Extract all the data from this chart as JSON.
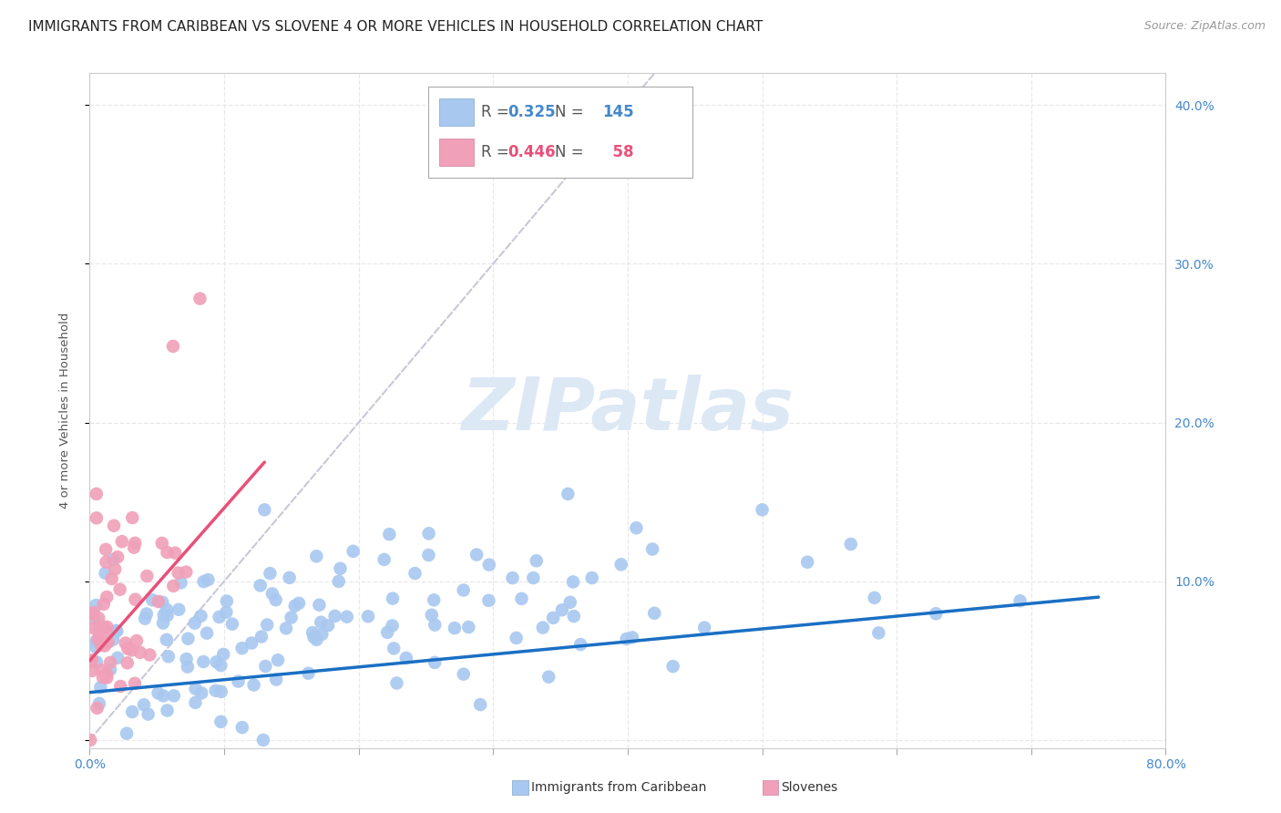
{
  "title": "IMMIGRANTS FROM CARIBBEAN VS SLOVENE 4 OR MORE VEHICLES IN HOUSEHOLD CORRELATION CHART",
  "source": "Source: ZipAtlas.com",
  "ylabel": "4 or more Vehicles in Household",
  "xlim": [
    0.0,
    0.8
  ],
  "ylim": [
    -0.005,
    0.42
  ],
  "yticks": [
    0.0,
    0.1,
    0.2,
    0.3,
    0.4
  ],
  "ytick_labels": [
    "",
    "10.0%",
    "20.0%",
    "30.0%",
    "40.0%"
  ],
  "xtick_positions": [
    0.0,
    0.1,
    0.2,
    0.3,
    0.4,
    0.5,
    0.6,
    0.7,
    0.8
  ],
  "caribbean_R": 0.325,
  "caribbean_N": 145,
  "slovene_R": 0.446,
  "slovene_N": 58,
  "caribbean_color": "#a8c8f0",
  "slovene_color": "#f0a0b8",
  "caribbean_line_color": "#1a6fc4",
  "slovene_line_color": "#e8507a",
  "diagonal_color": "#c8c8d8",
  "title_fontsize": 11,
  "source_fontsize": 9,
  "axis_label_fontsize": 9.5,
  "tick_fontsize": 10,
  "legend_fontsize": 12,
  "watermark_color": "#dde8f5",
  "background_color": "#ffffff",
  "grid_color": "#e8e8e8",
  "spine_color": "#cccccc"
}
